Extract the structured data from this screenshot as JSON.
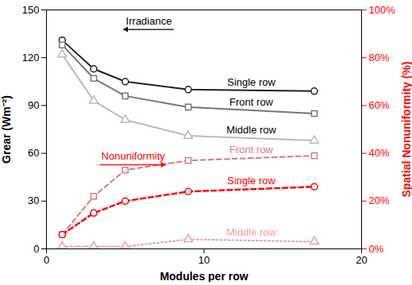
{
  "chart_data": {
    "type": "line",
    "xlabel": "Modules per row",
    "ylabel": "Grear (Wm⁻²)",
    "y2label": "Spatial Nonuniformity (%)",
    "x": [
      1,
      3,
      5,
      9,
      17
    ],
    "xlim": [
      0,
      20
    ],
    "xticks": [
      0,
      10,
      20
    ],
    "ylim": [
      0,
      150
    ],
    "yticks": [
      0,
      30,
      60,
      90,
      120,
      150
    ],
    "y2lim": [
      0,
      100
    ],
    "y2ticks": [
      {
        "value": 0,
        "label": "0%"
      },
      {
        "value": 20,
        "label": "20%"
      },
      {
        "value": 40,
        "label": "40%"
      },
      {
        "value": 60,
        "label": "60%"
      },
      {
        "value": 80,
        "label": "80%"
      },
      {
        "value": 100,
        "label": "100%"
      }
    ],
    "grid": false,
    "series": [
      {
        "name": "Single row",
        "color": "#222222",
        "marker": "circle",
        "line_style": "solid",
        "values": [
          131,
          113,
          105,
          100,
          99
        ]
      },
      {
        "name": "Front row",
        "color": "#777777",
        "marker": "square",
        "line_style": "solid",
        "values": [
          128,
          107,
          96,
          89,
          85
        ]
      },
      {
        "name": "Middle row",
        "color": "#bbbbbb",
        "marker": "triangle",
        "line_style": "solid",
        "values": [
          122,
          93,
          81,
          71,
          68
        ]
      },
      {
        "name": "Front row",
        "color": "#e07a7a",
        "marker": "square",
        "line_style": "dashed",
        "axis": "y2",
        "values": [
          6,
          22,
          33,
          37,
          39
        ]
      },
      {
        "name": "Single row",
        "color": "#ff0000",
        "marker": "circle",
        "line_style": "dashed",
        "axis": "y2",
        "values": [
          6,
          15,
          20,
          24,
          26
        ]
      },
      {
        "name": "Middle row",
        "color": "#f0a0a0",
        "marker": "triangle",
        "line_style": "dotted",
        "axis": "y2",
        "values": [
          1,
          1,
          1,
          4,
          3
        ]
      }
    ],
    "annotations": [
      {
        "text": "Irradiance",
        "x": 6.5,
        "y": 143,
        "color": "#000000",
        "arrow": "left"
      },
      {
        "text": "Nonuniformity",
        "x": 5.5,
        "y": 58,
        "color": "#ff0000",
        "arrow": "right"
      }
    ]
  }
}
